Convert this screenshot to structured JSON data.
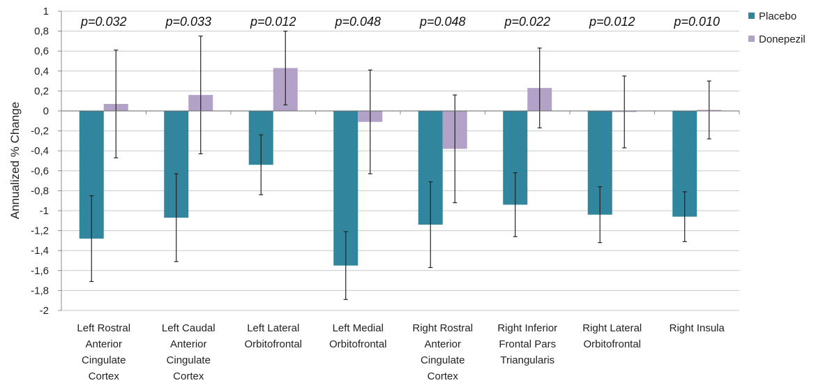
{
  "chart_data": {
    "type": "bar",
    "title": "",
    "xlabel": "",
    "ylabel": "Annualized % Change",
    "ylim": [
      -2,
      1
    ],
    "ytick_step": 0.2,
    "decimal_separator": ",",
    "grid": true,
    "legend_position": "right",
    "categories": [
      [
        "Left Rostral",
        "Anterior",
        "Cingulate",
        "Cortex"
      ],
      [
        "Left Caudal",
        "Anterior",
        "Cingulate",
        "Cortex"
      ],
      [
        "Left Lateral",
        "Orbitofrontal"
      ],
      [
        "Left Medial",
        "Orbitofrontal"
      ],
      [
        "Right Rostral",
        "Anterior",
        "Cingulate",
        "Cortex"
      ],
      [
        "Right Inferior",
        "Frontal Pars",
        "Triangularis"
      ],
      [
        "Right Lateral",
        "Orbitofrontal"
      ],
      [
        "Right Insula"
      ]
    ],
    "annotations": [
      "p=0.032",
      "p=0.033",
      "p=0.012",
      "p=0.048",
      "p=0.048",
      "p=0.022",
      "p=0.012",
      "p=0.010"
    ],
    "series": [
      {
        "name": "Placebo",
        "color": "#31859c",
        "values": [
          -1.28,
          -1.07,
          -0.54,
          -1.55,
          -1.14,
          -0.94,
          -1.04,
          -1.06
        ],
        "error": [
          0.43,
          0.44,
          0.3,
          0.34,
          0.43,
          0.32,
          0.28,
          0.25
        ]
      },
      {
        "name": "Donepezil",
        "color": "#b3a2c7",
        "values": [
          0.07,
          0.16,
          0.43,
          -0.11,
          -0.38,
          0.23,
          -0.01,
          0.01
        ],
        "error": [
          0.54,
          0.59,
          0.37,
          0.52,
          0.54,
          0.4,
          0.36,
          0.29
        ]
      }
    ]
  }
}
